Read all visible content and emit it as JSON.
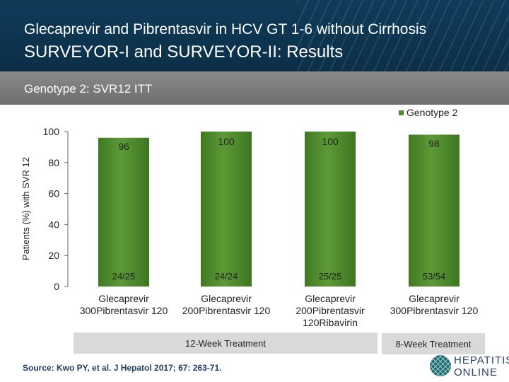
{
  "header": {
    "title_line1": "Glecaprevir and Pibrentasvir in HCV GT 1-6 without Cirrhosis",
    "title_line2": "SURVEYOR-I and SURVEYOR-II: Results",
    "subtitle": "Genotype 2: SVR12 ITT"
  },
  "chart_data": {
    "type": "bar",
    "title": "",
    "ylabel": "Patients (%) with SVR 12",
    "xlabel": "",
    "ylim": [
      0,
      100
    ],
    "yticks": [
      0,
      20,
      40,
      60,
      80,
      100
    ],
    "legend": {
      "placement": "top-right",
      "entries": [
        "Genotype 2"
      ]
    },
    "categories": [
      [
        "Glecaprevir",
        "300Pibrentasvir 120"
      ],
      [
        "Glecaprevir",
        "200Pibrentasvir 120"
      ],
      [
        "Glecaprevir",
        "200Pibrentasvir",
        "120Ribavirin"
      ],
      [
        "Glecaprevir",
        "300Pibrentasvir 120"
      ]
    ],
    "series": [
      {
        "name": "Genotype 2",
        "values": [
          96,
          100,
          100,
          98
        ],
        "color": "#4e8a2e"
      }
    ],
    "n_labels": [
      "24/25",
      "24/24",
      "25/25",
      "53/54"
    ],
    "treatment_groups": [
      {
        "label": "12-Week Treatment",
        "categories": [
          0,
          1,
          2
        ]
      },
      {
        "label": "8-Week Treatment",
        "categories": [
          3
        ]
      }
    ]
  },
  "footer": {
    "source": "Source: Kwo PY, et al. J Hepatol 2017; 67: 263-71.",
    "logo_line1": "HEPATITIS C",
    "logo_line2": "ONLINE"
  }
}
